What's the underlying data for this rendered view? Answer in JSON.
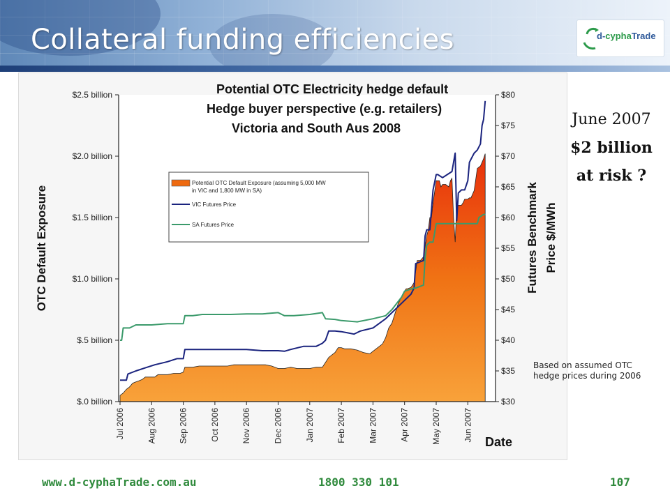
{
  "slide": {
    "title": "Collateral funding efficiencies",
    "logo": {
      "prefix": "d-",
      "highlight": "cypha",
      "suffix": "Trade",
      "icon": "d-cyphatrade-logo"
    },
    "note": {
      "line1": "June 2007",
      "line2": "$2 billion",
      "line3": "at risk ?"
    },
    "assumption": {
      "line1": "Based on assumed OTC",
      "line2": "hedge prices during 2006"
    },
    "footer": {
      "website": "www.d-cyphaTrade.com.au",
      "phone": "1800 330 101",
      "page": "107"
    }
  },
  "chart_data": {
    "type": "area",
    "title_lines": [
      "Potential OTC Electricity hedge default",
      "Hedge buyer perspective (e.g. retailers)",
      "Victoria and South Aus 2008"
    ],
    "xlabel": "Date",
    "ylabel": "OTC Default Exposure",
    "y2label_lines": [
      "Futures Benchmark",
      "Price $/MWh"
    ],
    "x_ticks": [
      "Jul 2006",
      "Aug 2006",
      "Sep 2006",
      "Oct 2006",
      "Nov 2006",
      "Dec 2006",
      "Jan 2007",
      "Feb 2007",
      "Mar 2007",
      "Apr 2007",
      "May 2007",
      "Jun 2007"
    ],
    "y_ticks": [
      "$.0 billion",
      "$.5 billion",
      "$1.0 billion",
      "$1.5 billion",
      "$2.0 billion",
      "$2.5 billion"
    ],
    "y2_ticks": [
      "$30",
      "$35",
      "$40",
      "$45",
      "$50",
      "$55",
      "$60",
      "$65",
      "$70",
      "$75",
      "$80"
    ],
    "ylim": [
      0,
      2.5
    ],
    "y2lim": [
      30,
      80
    ],
    "xlim": [
      "Jul 2006",
      "mid-Jun 2007"
    ],
    "grid": false,
    "legend_position": "upper-left inside plot",
    "legend": [
      {
        "label": "Potential OTC Default Exposure (assuming 5,000 MW",
        "label2": "in VIC and 1,800 MW in SA)",
        "color": "#ee6a10",
        "kind": "area"
      },
      {
        "label": "VIC Futures Price",
        "color": "#1a237e",
        "kind": "line"
      },
      {
        "label": "SA Futures Price",
        "color": "#3b9a6b",
        "kind": "line"
      }
    ],
    "series": [
      {
        "name": "Potential OTC Default Exposure",
        "axis": "left",
        "unit": "$ billion",
        "x": [
          0,
          0.05,
          0.1,
          0.2,
          0.3,
          0.4,
          0.5,
          0.6,
          0.7,
          0.8,
          0.9,
          1.0,
          1.05,
          1.1,
          1.15,
          1.2,
          1.35,
          1.5,
          1.7,
          1.9,
          2.0,
          2.05,
          2.1,
          2.3,
          2.5,
          2.7,
          2.9,
          3.0,
          3.2,
          3.4,
          3.6,
          3.8,
          4.0,
          4.2,
          4.4,
          4.6,
          4.8,
          5.0,
          5.2,
          5.4,
          5.6,
          5.8,
          6.0,
          6.2,
          6.4,
          6.6,
          6.8,
          6.9,
          7.0,
          7.1,
          7.3,
          7.5,
          7.7,
          7.9,
          8.0,
          8.1,
          8.2,
          8.3,
          8.4,
          8.5,
          8.6,
          8.8,
          8.9,
          9.0,
          9.05,
          9.1,
          9.2,
          9.3,
          9.4,
          9.5,
          9.6,
          9.7,
          9.75,
          9.8,
          9.85,
          9.9,
          10.0,
          10.1,
          10.15,
          10.2,
          10.3,
          10.4,
          10.45,
          10.5,
          10.55,
          10.6,
          10.65,
          10.7,
          10.8,
          10.85,
          10.9,
          11.0,
          11.05,
          11.1,
          11.2,
          11.3,
          11.4,
          11.45,
          11.5,
          11.55
        ],
        "values": [
          0.05,
          0.06,
          0.07,
          0.1,
          0.12,
          0.15,
          0.16,
          0.17,
          0.18,
          0.2,
          0.2,
          0.2,
          0.2,
          0.2,
          0.21,
          0.22,
          0.22,
          0.22,
          0.23,
          0.23,
          0.24,
          0.28,
          0.28,
          0.28,
          0.29,
          0.29,
          0.29,
          0.29,
          0.29,
          0.29,
          0.3,
          0.3,
          0.3,
          0.3,
          0.3,
          0.3,
          0.29,
          0.27,
          0.27,
          0.28,
          0.27,
          0.27,
          0.27,
          0.28,
          0.28,
          0.36,
          0.4,
          0.44,
          0.44,
          0.43,
          0.43,
          0.42,
          0.4,
          0.39,
          0.41,
          0.43,
          0.45,
          0.47,
          0.52,
          0.6,
          0.64,
          0.8,
          0.85,
          0.9,
          0.92,
          0.92,
          0.93,
          0.97,
          1.15,
          1.15,
          1.18,
          1.35,
          1.4,
          1.5,
          1.5,
          1.62,
          1.8,
          1.8,
          1.75,
          1.77,
          1.77,
          1.75,
          1.8,
          1.82,
          1.5,
          1.3,
          1.6,
          1.6,
          1.6,
          1.62,
          1.65,
          1.65,
          1.66,
          1.66,
          1.72,
          1.9,
          1.92,
          1.95,
          1.98,
          2.02
        ]
      },
      {
        "name": "VIC Futures Price",
        "axis": "right",
        "unit": "$/MWh",
        "x": [
          0,
          0.2,
          0.25,
          0.5,
          0.8,
          1.1,
          1.5,
          1.8,
          2.0,
          2.05,
          2.3,
          2.5,
          2.8,
          3.0,
          3.5,
          4.0,
          4.5,
          5.0,
          5.2,
          5.4,
          5.8,
          6.2,
          6.4,
          6.5,
          6.6,
          6.8,
          7.0,
          7.2,
          7.4,
          7.6,
          8.0,
          8.4,
          8.6,
          8.9,
          9.0,
          9.2,
          9.3,
          9.35,
          9.6,
          9.65,
          9.7,
          9.8,
          9.9,
          10.0,
          10.05,
          10.2,
          10.5,
          10.6,
          10.65,
          10.7,
          10.8,
          10.9,
          11.0,
          11.05,
          11.1,
          11.2,
          11.3,
          11.4,
          11.45,
          11.5,
          11.55
        ],
        "values": [
          33.5,
          33.5,
          34.5,
          35,
          35.5,
          36,
          36.5,
          37,
          37,
          38.5,
          38.5,
          38.5,
          38.5,
          38.5,
          38.5,
          38.5,
          38.3,
          38.3,
          38.2,
          38.5,
          39,
          39,
          39.5,
          40,
          41.5,
          41.5,
          41.4,
          41.2,
          41,
          41.5,
          42,
          43.5,
          44.5,
          46,
          46.5,
          47.5,
          48.5,
          52.5,
          53,
          57,
          58,
          58,
          64.5,
          67,
          67,
          66.5,
          67.5,
          70.5,
          59.5,
          64,
          64.5,
          64.5,
          66,
          69,
          69.5,
          70.5,
          71,
          72,
          75,
          76,
          79
        ]
      },
      {
        "name": "SA Futures Price",
        "axis": "right",
        "unit": "$/MWh",
        "x": [
          0,
          0.05,
          0.1,
          0.3,
          0.5,
          1.0,
          1.5,
          2.0,
          2.05,
          2.3,
          2.6,
          3.0,
          3.5,
          4.0,
          4.5,
          5.0,
          5.2,
          5.5,
          6.0,
          6.4,
          6.5,
          6.8,
          7.0,
          7.5,
          8.0,
          8.4,
          8.6,
          8.9,
          9.0,
          9.3,
          9.35,
          9.6,
          9.65,
          9.7,
          9.8,
          9.9,
          10.0,
          10.5,
          11.0,
          11.3,
          11.35,
          11.5,
          11.55
        ],
        "values": [
          40,
          40,
          42,
          42,
          42.5,
          42.5,
          42.7,
          42.7,
          44,
          44,
          44.2,
          44.2,
          44.2,
          44.3,
          44.3,
          44.5,
          44,
          44,
          44.2,
          44.5,
          43.5,
          43.4,
          43.2,
          43,
          43.5,
          44,
          45,
          47,
          48,
          48.5,
          48.5,
          49,
          53.5,
          55.5,
          56,
          56,
          59,
          59,
          59,
          59,
          60,
          60.5,
          60.5
        ]
      }
    ]
  }
}
